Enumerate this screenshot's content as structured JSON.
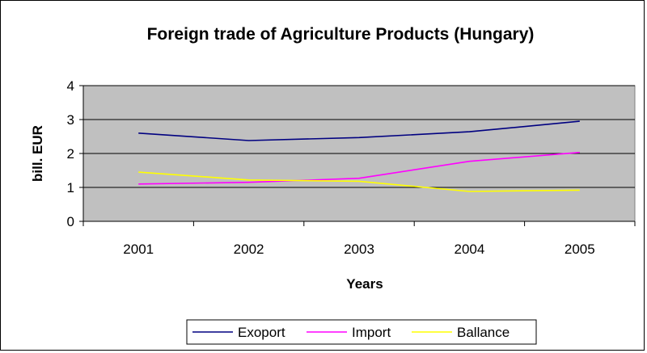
{
  "chart_data": {
    "type": "line",
    "title": "Foreign trade of Agriculture Products (Hungary)",
    "xlabel": "Years",
    "ylabel": "bill. EUR",
    "categories": [
      "2001",
      "2002",
      "2003",
      "2004",
      "2005"
    ],
    "ylim": [
      0,
      4
    ],
    "yticks": [
      "0",
      "1",
      "2",
      "3",
      "4"
    ],
    "grid": true,
    "legend_position": "bottom",
    "plot_background": "#c0c0c0",
    "series": [
      {
        "name": "Exoport",
        "color": "#000080",
        "values": [
          2.6,
          2.38,
          2.47,
          2.64,
          2.95
        ]
      },
      {
        "name": "Import",
        "color": "#ff00ff",
        "values": [
          1.1,
          1.15,
          1.27,
          1.77,
          2.03
        ]
      },
      {
        "name": "Ballance",
        "color": "#ffff00",
        "values": [
          1.45,
          1.22,
          1.18,
          0.88,
          0.92
        ]
      }
    ]
  }
}
